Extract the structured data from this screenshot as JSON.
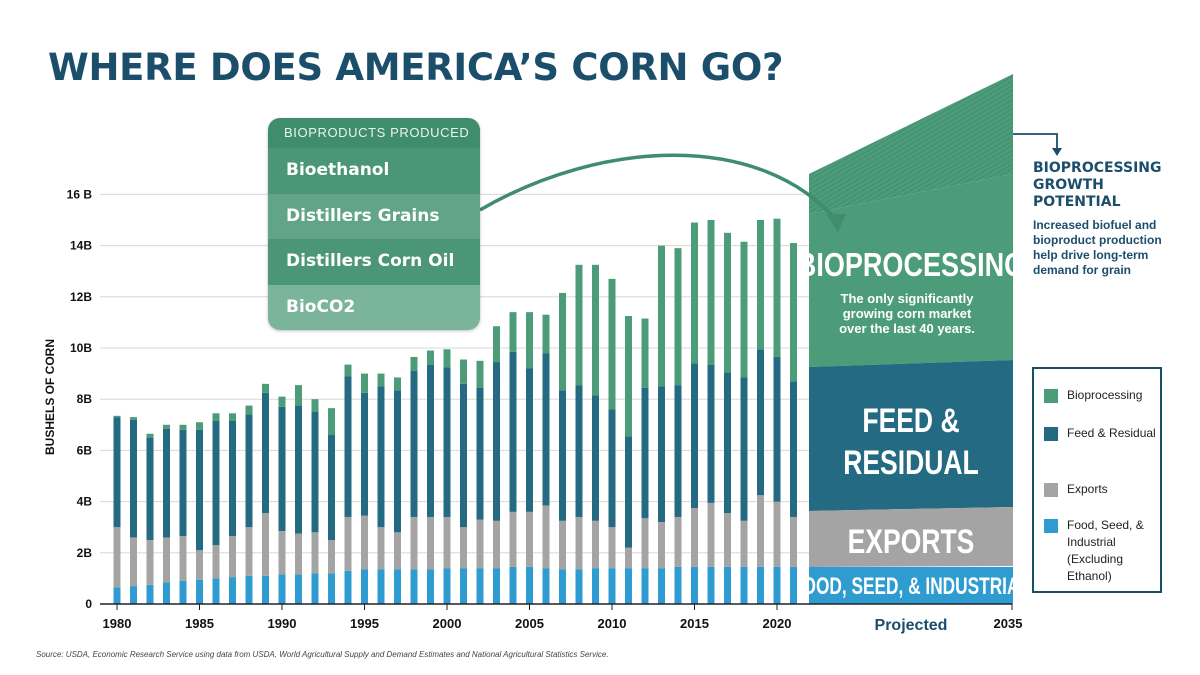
{
  "title": "WHERE DOES AMERICA’S CORN GO?",
  "source": "Source: USDA, Economic Research Service using data from USDA, World Agricultural Supply and Demand Estimates and  National Agricultural Statistics Service.",
  "bioproducts": {
    "header": "BIOPRODUCTS PRODUCED",
    "items": [
      "Bioethanol",
      "Distillers Grains",
      "Distillers Corn Oil",
      "BioCO2"
    ]
  },
  "projection": {
    "bioprocessing_label": "BIOPROCESSING",
    "bioprocessing_desc": [
      "The only significantly",
      "growing corn market",
      "over the last 40 years."
    ],
    "feed_label": [
      "FEED &",
      "RESIDUAL"
    ],
    "exports_label": "EXPORTS",
    "fsi_label": "FOOD, SEED, & INDUSTRIAL",
    "growth_title": "BIOPROCESSING GROWTH POTENTIAL",
    "growth_desc": "Increased biofuel and bioproduct production help drive long-term demand for grain"
  },
  "legend": [
    {
      "label": "Bioprocessing",
      "color": "#4c9b79"
    },
    {
      "label": "Feed & Residual",
      "color": "#236a82"
    },
    {
      "label": "Exports",
      "color": "#a4a4a4"
    },
    {
      "label": "Food, Seed, & Industrial (Excluding Ethanol)",
      "color": "#2e9cd0"
    }
  ],
  "chart_data": {
    "type": "bar",
    "stacked": true,
    "ylabel": "BUSHELS OF CORN",
    "ylim": [
      0,
      16
    ],
    "y_ticks": [
      "0",
      "2B",
      "4B",
      "6B",
      "8B",
      "10B",
      "12B",
      "14B",
      "16 B"
    ],
    "x_ticks": [
      "1980",
      "1985",
      "1990",
      "1995",
      "2000",
      "2005",
      "2010",
      "2015",
      "2020"
    ],
    "projected_label": "Projected",
    "projected_year": "2035",
    "categories": [
      1980,
      1981,
      1982,
      1983,
      1984,
      1985,
      1986,
      1987,
      1988,
      1989,
      1990,
      1991,
      1992,
      1993,
      1994,
      1995,
      1996,
      1997,
      1998,
      1999,
      2000,
      2001,
      2002,
      2003,
      2004,
      2005,
      2006,
      2007,
      2008,
      2009,
      2010,
      2011,
      2012,
      2013,
      2014,
      2015,
      2016,
      2017,
      2018,
      2019,
      2020,
      2021
    ],
    "series": [
      {
        "name": "Food, Seed, & Industrial",
        "color": "#2e9cd0",
        "values": [
          0.65,
          0.7,
          0.75,
          0.85,
          0.9,
          0.95,
          1.0,
          1.05,
          1.1,
          1.1,
          1.15,
          1.15,
          1.2,
          1.2,
          1.3,
          1.35,
          1.35,
          1.35,
          1.35,
          1.35,
          1.4,
          1.4,
          1.4,
          1.4,
          1.45,
          1.45,
          1.4,
          1.35,
          1.35,
          1.4,
          1.4,
          1.4,
          1.4,
          1.4,
          1.45,
          1.45,
          1.45,
          1.45,
          1.45,
          1.45,
          1.45,
          1.45
        ]
      },
      {
        "name": "Exports",
        "color": "#a4a4a4",
        "values": [
          2.35,
          1.9,
          1.75,
          1.75,
          1.75,
          1.15,
          1.3,
          1.6,
          1.9,
          2.45,
          1.7,
          1.6,
          1.6,
          1.3,
          2.1,
          2.1,
          1.65,
          1.45,
          2.05,
          2.05,
          2.0,
          1.6,
          1.9,
          1.85,
          2.15,
          2.15,
          2.45,
          1.9,
          2.05,
          1.85,
          1.6,
          0.8,
          1.95,
          1.8,
          1.95,
          2.3,
          2.5,
          2.1,
          1.8,
          2.8,
          2.55,
          1.95
        ]
      },
      {
        "name": "Feed & Residual",
        "color": "#236a82",
        "values": [
          4.3,
          4.6,
          4.0,
          4.25,
          4.15,
          4.7,
          4.85,
          4.5,
          4.4,
          4.7,
          4.85,
          5.0,
          4.7,
          4.1,
          5.5,
          4.8,
          5.5,
          5.55,
          5.7,
          5.95,
          5.85,
          5.6,
          5.15,
          6.2,
          6.25,
          5.6,
          5.95,
          5.1,
          5.15,
          4.9,
          4.6,
          4.35,
          5.1,
          5.3,
          5.15,
          5.65,
          5.4,
          5.5,
          5.6,
          5.7,
          5.65,
          5.3
        ]
      },
      {
        "name": "Bioprocessing",
        "color": "#4c9b79",
        "values": [
          0.05,
          0.1,
          0.15,
          0.15,
          0.2,
          0.3,
          0.3,
          0.3,
          0.35,
          0.35,
          0.4,
          0.8,
          0.5,
          1.05,
          0.45,
          0.75,
          0.5,
          0.5,
          0.55,
          0.55,
          0.7,
          0.95,
          1.05,
          1.4,
          1.55,
          2.2,
          1.5,
          3.8,
          4.7,
          5.1,
          5.1,
          4.7,
          2.7,
          5.5,
          5.35,
          5.5,
          5.65,
          5.45,
          5.3,
          5.05,
          5.4,
          5.4
        ]
      }
    ]
  }
}
